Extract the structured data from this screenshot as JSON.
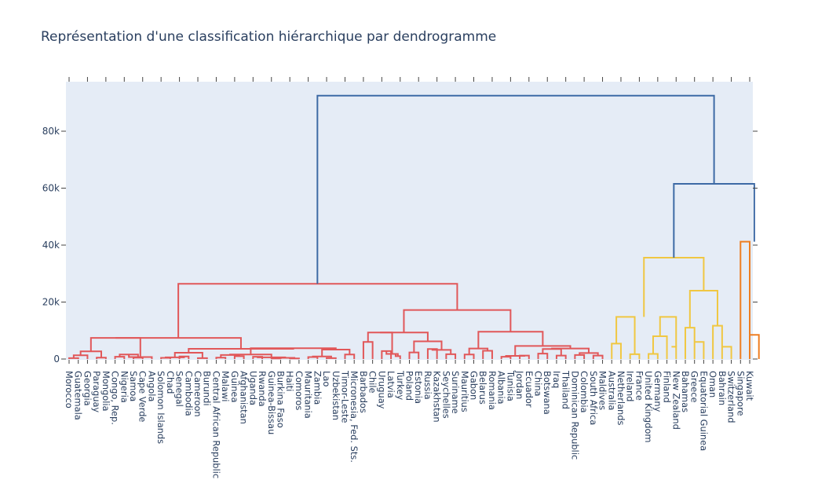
{
  "title": "Représentation d'une classification hiérarchique par dendrogramme",
  "chart_data": {
    "type": "dendrogram",
    "title": "Représentation d'une classification hiérarchique par dendrogramme",
    "xlabel": "",
    "ylabel": "",
    "ylim": [
      0,
      95000
    ],
    "y_ticks": [
      0,
      20000,
      40000,
      60000,
      80000
    ],
    "y_tick_labels": [
      "0",
      "20k",
      "40k",
      "60k",
      "80k"
    ],
    "grid": false,
    "legend": "none",
    "colors": {
      "plot_bg": "#e5ecf6",
      "root": "#3d6aa5",
      "cluster_red": "#e15759",
      "cluster_yellow": "#f0c742",
      "cluster_orange": "#ee7e22",
      "text": "#2a3f5f",
      "axis": "#444444"
    },
    "leaves": [
      "Morocco",
      "Guatemala",
      "Georgia",
      "Paraguay",
      "Mongolia",
      "Congo, Rep.",
      "Nigeria",
      "Samoa",
      "Cape Verde",
      "Angola",
      "Solomon Islands",
      "Chad",
      "Senegal",
      "Cambodia",
      "Cameroon",
      "Burundi",
      "Central African Republic",
      "Malawi",
      "Guinea",
      "Afghanistan",
      "Uganda",
      "Rwanda",
      "Guinea-Bissau",
      "Burkina Faso",
      "Haiti",
      "Comoros",
      "Mauritania",
      "Zambia",
      "Lao",
      "Uzbekistan",
      "Timor-Leste",
      "Micronesia, Fed. Sts.",
      "Barbados",
      "Chile",
      "Uruguay",
      "Latvia",
      "Turkey",
      "Poland",
      "Estonia",
      "Russia",
      "Kazakhstan",
      "Seychelles",
      "Suriname",
      "Mauritius",
      "Gabon",
      "Belarus",
      "Romania",
      "Albania",
      "Tunisia",
      "Jordan",
      "Ecuador",
      "China",
      "Botswana",
      "Iraq",
      "Thailand",
      "Dominican Republic",
      "Colombia",
      "South Africa",
      "Maldives",
      "Australia",
      "Netherlands",
      "Ireland",
      "France",
      "United Kingdom",
      "Germany",
      "Finland",
      "New Zealand",
      "Bahamas",
      "Greece",
      "Equatorial Guinea",
      "Oman",
      "Bahrain",
      "Switzerland",
      "Singapore",
      "Kuwait"
    ],
    "links": [
      {
        "x": [
          0,
          0,
          1,
          1
        ],
        "y": [
          0,
          300,
          300,
          0
        ],
        "c": "red"
      },
      {
        "x": [
          0.5,
          0.5,
          2,
          2
        ],
        "y": [
          300,
          1300,
          1300,
          0
        ],
        "c": "red"
      },
      {
        "x": [
          3,
          3,
          4,
          4
        ],
        "y": [
          0,
          500,
          500,
          0
        ],
        "c": "red"
      },
      {
        "x": [
          1.25,
          1.25,
          3.5,
          3.5
        ],
        "y": [
          1300,
          2700,
          2700,
          500
        ],
        "c": "red"
      },
      {
        "x": [
          5,
          5,
          6,
          6
        ],
        "y": [
          0,
          800,
          800,
          0
        ],
        "c": "red"
      },
      {
        "x": [
          7,
          7,
          8,
          8
        ],
        "y": [
          0,
          500,
          500,
          0
        ],
        "c": "red"
      },
      {
        "x": [
          5.5,
          5.5,
          7.5,
          7.5
        ],
        "y": [
          800,
          1600,
          1600,
          500
        ],
        "c": "red"
      },
      {
        "x": [
          6.5,
          6.5,
          9,
          9
        ],
        "y": [
          1600,
          700,
          700,
          0
        ],
        "c": "red"
      },
      {
        "x": [
          2.375,
          2.375,
          7.75,
          7.75
        ],
        "y": [
          2700,
          7400,
          7400,
          700
        ],
        "c": "red"
      },
      {
        "x": [
          10,
          10,
          11,
          11
        ],
        "y": [
          0,
          400,
          400,
          0
        ],
        "c": "red"
      },
      {
        "x": [
          12,
          12,
          13,
          13
        ],
        "y": [
          0,
          900,
          900,
          0
        ],
        "c": "red"
      },
      {
        "x": [
          10.5,
          10.5,
          12.5,
          12.5
        ],
        "y": [
          400,
          600,
          600,
          900
        ],
        "c": "red"
      },
      {
        "x": [
          14,
          14,
          15,
          15
        ],
        "y": [
          0,
          300,
          300,
          0
        ],
        "c": "red"
      },
      {
        "x": [
          11.5,
          11.5,
          14.5,
          14.5
        ],
        "y": [
          600,
          2200,
          2200,
          300
        ],
        "c": "red"
      },
      {
        "x": [
          16,
          16,
          17,
          17
        ],
        "y": [
          0,
          500,
          500,
          0
        ],
        "c": "red"
      },
      {
        "x": [
          18,
          18,
          19,
          19
        ],
        "y": [
          0,
          1000,
          1000,
          0
        ],
        "c": "red"
      },
      {
        "x": [
          16.5,
          16.5,
          18.5,
          18.5
        ],
        "y": [
          500,
          1400,
          1400,
          1000
        ],
        "c": "red"
      },
      {
        "x": [
          20,
          20,
          21,
          21
        ],
        "y": [
          0,
          800,
          800,
          0
        ],
        "c": "red"
      },
      {
        "x": [
          22,
          22,
          23,
          23
        ],
        "y": [
          0,
          200,
          200,
          0
        ],
        "c": "red"
      },
      {
        "x": [
          24,
          24,
          25,
          25
        ],
        "y": [
          0,
          200,
          200,
          0
        ],
        "c": "red"
      },
      {
        "x": [
          22.5,
          22.5,
          24.5,
          24.5
        ],
        "y": [
          200,
          400,
          400,
          200
        ],
        "c": "red"
      },
      {
        "x": [
          20.5,
          20.5,
          23.5,
          23.5
        ],
        "y": [
          800,
          600,
          600,
          400
        ],
        "c": "red"
      },
      {
        "x": [
          17.5,
          17.5,
          22,
          22
        ],
        "y": [
          1400,
          1600,
          1600,
          600
        ],
        "c": "red"
      },
      {
        "x": [
          26,
          26,
          27,
          27
        ],
        "y": [
          0,
          700,
          700,
          0
        ],
        "c": "red"
      },
      {
        "x": [
          28,
          28,
          29,
          29
        ],
        "y": [
          0,
          300,
          300,
          0
        ],
        "c": "red"
      },
      {
        "x": [
          26.5,
          26.5,
          28.5,
          28.5
        ],
        "y": [
          700,
          900,
          900,
          300
        ],
        "c": "red"
      },
      {
        "x": [
          30,
          30,
          31,
          31
        ],
        "y": [
          0,
          1600,
          1600,
          0
        ],
        "c": "red"
      },
      {
        "x": [
          27.5,
          27.5,
          30.5,
          30.5
        ],
        "y": [
          900,
          3300,
          3300,
          1600
        ],
        "c": "red"
      },
      {
        "x": [
          19.75,
          19.75,
          29,
          29
        ],
        "y": [
          1600,
          3800,
          3800,
          3300
        ],
        "c": "red"
      },
      {
        "x": [
          13,
          13,
          24.375,
          24.375
        ],
        "y": [
          2200,
          3600,
          3600,
          3800
        ],
        "c": "red"
      },
      {
        "x": [
          5.0625,
          5.0625,
          18.6875,
          18.6875
        ],
        "y": [
          7400,
          7400,
          7400,
          3600
        ],
        "c": "red"
      },
      {
        "x": [
          32,
          32,
          33,
          33
        ],
        "y": [
          0,
          6000,
          6000,
          0
        ],
        "c": "red"
      },
      {
        "x": [
          34,
          34,
          35,
          35
        ],
        "y": [
          0,
          2800,
          2800,
          0
        ],
        "c": "red"
      },
      {
        "x": [
          35.5,
          35.5,
          36,
          36
        ],
        "y": [
          1500,
          1000,
          1000,
          0
        ],
        "c": "red"
      },
      {
        "x": [
          34.5,
          34.5,
          35.75,
          35.75
        ],
        "y": [
          2800,
          1800,
          1800,
          1000
        ],
        "c": "red"
      },
      {
        "x": [
          32.5,
          32.5,
          35.125,
          35.125
        ],
        "y": [
          6000,
          9300,
          9300,
          1800
        ],
        "c": "red"
      },
      {
        "x": [
          37,
          37,
          38,
          38
        ],
        "y": [
          0,
          2300,
          2300,
          0
        ],
        "c": "red"
      },
      {
        "x": [
          39,
          39,
          40,
          40
        ],
        "y": [
          0,
          3500,
          3500,
          0
        ],
        "c": "red"
      },
      {
        "x": [
          41,
          41,
          42,
          42
        ],
        "y": [
          0,
          1700,
          1700,
          0
        ],
        "c": "red"
      },
      {
        "x": [
          39.5,
          39.5,
          41.5,
          41.5
        ],
        "y": [
          3500,
          3200,
          3200,
          1700
        ],
        "c": "red"
      },
      {
        "x": [
          37.5,
          37.5,
          40.5,
          40.5
        ],
        "y": [
          2300,
          6200,
          6200,
          3200
        ],
        "c": "red"
      },
      {
        "x": [
          33.8125,
          33.8125,
          39,
          39
        ],
        "y": [
          9300,
          9300,
          9300,
          6200
        ],
        "c": "red"
      },
      {
        "x": [
          43,
          43,
          44,
          44
        ],
        "y": [
          0,
          1600,
          1600,
          0
        ],
        "c": "red"
      },
      {
        "x": [
          45,
          45,
          46,
          46
        ],
        "y": [
          0,
          2900,
          2900,
          0
        ],
        "c": "red"
      },
      {
        "x": [
          43.5,
          43.5,
          45.5,
          45.5
        ],
        "y": [
          1600,
          3700,
          3700,
          2900
        ],
        "c": "red"
      },
      {
        "x": [
          47,
          47,
          48,
          48
        ],
        "y": [
          0,
          800,
          800,
          0
        ],
        "c": "red"
      },
      {
        "x": [
          49,
          49,
          50,
          50
        ],
        "y": [
          0,
          1200,
          1200,
          0
        ],
        "c": "red"
      },
      {
        "x": [
          47.5,
          47.5,
          49.5,
          49.5
        ],
        "y": [
          800,
          1100,
          1100,
          1200
        ],
        "c": "red"
      },
      {
        "x": [
          51,
          51,
          52,
          52
        ],
        "y": [
          0,
          1900,
          1900,
          0
        ],
        "c": "red"
      },
      {
        "x": [
          53,
          53,
          54,
          54
        ],
        "y": [
          0,
          1200,
          1200,
          0
        ],
        "c": "red"
      },
      {
        "x": [
          51.5,
          51.5,
          53.5,
          53.5
        ],
        "y": [
          1900,
          3500,
          3500,
          1200
        ],
        "c": "red"
      },
      {
        "x": [
          55,
          55,
          56,
          56
        ],
        "y": [
          0,
          1400,
          1400,
          0
        ],
        "c": "red"
      },
      {
        "x": [
          57,
          57,
          58,
          58
        ],
        "y": [
          0,
          1200,
          1200,
          0
        ],
        "c": "red"
      },
      {
        "x": [
          55.5,
          55.5,
          57.5,
          57.5
        ],
        "y": [
          1400,
          2100,
          2100,
          1200
        ],
        "c": "red"
      },
      {
        "x": [
          52.5,
          52.5,
          56.5,
          56.5
        ],
        "y": [
          3500,
          3700,
          3700,
          2100
        ],
        "c": "red"
      },
      {
        "x": [
          48.5,
          48.5,
          54.5,
          54.5
        ],
        "y": [
          1100,
          4600,
          4600,
          3700
        ],
        "c": "red"
      },
      {
        "x": [
          44.5,
          44.5,
          51.5,
          51.5
        ],
        "y": [
          3700,
          9600,
          9600,
          4600
        ],
        "c": "red"
      },
      {
        "x": [
          36.4,
          36.4,
          48,
          48
        ],
        "y": [
          9300,
          17200,
          17200,
          9600
        ],
        "c": "red"
      },
      {
        "x": [
          11.875,
          11.875,
          42.2,
          42.2
        ],
        "y": [
          7400,
          26400,
          26400,
          17200
        ],
        "c": "red"
      },
      {
        "x": [
          59,
          59,
          60,
          60
        ],
        "y": [
          0,
          5400,
          5400,
          0
        ],
        "c": "yellow"
      },
      {
        "x": [
          61,
          61,
          62,
          62
        ],
        "y": [
          0,
          1700,
          1700,
          0
        ],
        "c": "yellow"
      },
      {
        "x": [
          59.5,
          59.5,
          61.5,
          61.5
        ],
        "y": [
          5400,
          14800,
          14800,
          1700
        ],
        "c": "yellow"
      },
      {
        "x": [
          63,
          63,
          64,
          64
        ],
        "y": [
          0,
          1800,
          1800,
          0
        ],
        "c": "yellow"
      },
      {
        "x": [
          63.5,
          63.5,
          65,
          65
        ],
        "y": [
          1800,
          8000,
          8000,
          0
        ],
        "c": "yellow"
      },
      {
        "x": [
          65.5,
          65.5,
          66,
          66
        ],
        "y": [
          4300,
          4300,
          4300,
          0
        ],
        "c": "yellow"
      },
      {
        "x": [
          64.25,
          64.25,
          66,
          66
        ],
        "y": [
          8000,
          14800,
          14800,
          4300
        ],
        "c": "yellow"
      },
      {
        "x": [
          67,
          67,
          68,
          68
        ],
        "y": [
          0,
          11000,
          11000,
          0
        ],
        "c": "yellow"
      },
      {
        "x": [
          68,
          68,
          69,
          69
        ],
        "y": [
          6000,
          6000,
          6000,
          0
        ],
        "c": "yellow"
      },
      {
        "x": [
          70,
          70,
          71,
          71
        ],
        "y": [
          0,
          11700,
          11700,
          0
        ],
        "c": "yellow"
      },
      {
        "x": [
          71,
          71,
          72,
          72
        ],
        "y": [
          4300,
          4300,
          4300,
          0
        ],
        "c": "yellow"
      },
      {
        "x": [
          67.5,
          67.5,
          70.5,
          70.5
        ],
        "y": [
          11000,
          24000,
          24000,
          11700
        ],
        "c": "yellow"
      },
      {
        "x": [
          62.5,
          62.5,
          69,
          69
        ],
        "y": [
          14800,
          35600,
          35600,
          24000
        ],
        "c": "yellow"
      },
      {
        "x": [
          73,
          73,
          74,
          74
        ],
        "y": [
          0,
          41200,
          41200,
          0
        ],
        "c": "orange"
      },
      {
        "x": [
          74,
          74,
          75,
          75
        ],
        "y": [
          8500,
          8500,
          8500,
          0
        ],
        "c": "orange"
      },
      {
        "x": [
          65.75,
          65.75,
          74.5,
          74.5
        ],
        "y": [
          35600,
          61500,
          61500,
          41200
        ],
        "c": "root"
      },
      {
        "x": [
          27,
          27,
          70.125,
          70.125
        ],
        "y": [
          26400,
          92500,
          92500,
          61500
        ],
        "c": "root"
      }
    ]
  }
}
